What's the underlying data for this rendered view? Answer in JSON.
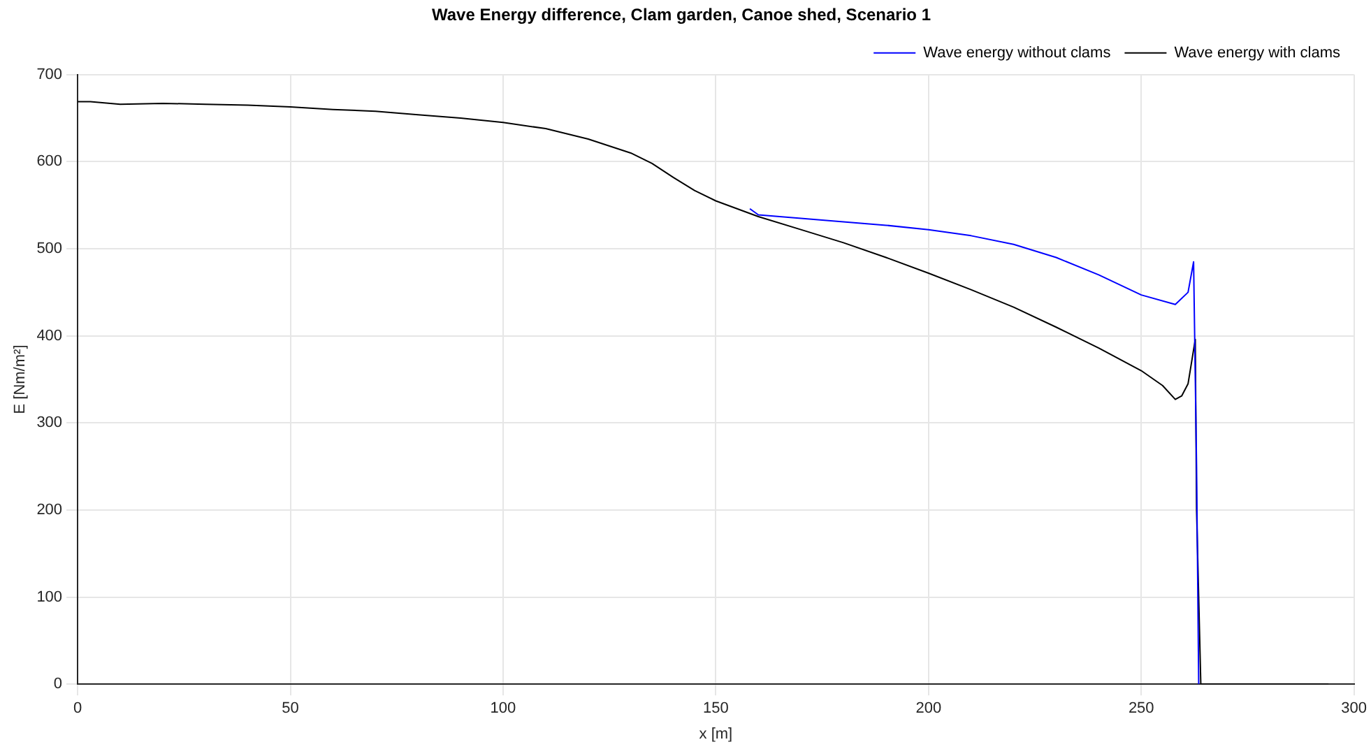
{
  "chart_data": {
    "type": "line",
    "title": "Wave Energy difference, Clam garden, Canoe shed, Scenario 1",
    "xlabel": "x [m]",
    "ylabel": "E [Nm/m²]",
    "xlim": [
      0,
      300
    ],
    "xticks": [
      0,
      50,
      100,
      150,
      200,
      250,
      300
    ],
    "ylim": [
      0,
      700
    ],
    "yticks": [
      0,
      100,
      200,
      300,
      400,
      500,
      600,
      700
    ],
    "grid": true,
    "legend": "top right",
    "marker": "none",
    "line_style": "solid",
    "series": [
      {
        "name": "Wave energy without clams",
        "color": "#0000ff",
        "x": [
          158,
          160,
          170,
          180,
          190,
          200,
          210,
          220,
          230,
          240,
          250,
          258,
          261,
          262.3,
          263,
          263.5
        ],
        "values": [
          546,
          539,
          535,
          531,
          527,
          522,
          515,
          505,
          490,
          470,
          447,
          436,
          450,
          485,
          250,
          0
        ]
      },
      {
        "name": "Wave energy with clams",
        "color": "#000000",
        "x": [
          0,
          3,
          10,
          20,
          30,
          40,
          50,
          60,
          70,
          80,
          90,
          100,
          110,
          120,
          130,
          135,
          140,
          145,
          150,
          155,
          160,
          170,
          180,
          190,
          200,
          210,
          220,
          230,
          240,
          250,
          255,
          258,
          259.5,
          261,
          262,
          262.7,
          263,
          264,
          294
        ],
        "values": [
          669,
          669,
          666,
          667,
          666,
          665,
          663,
          660,
          658,
          654,
          650,
          645,
          638,
          626,
          610,
          598,
          582,
          567,
          555,
          546,
          537,
          522,
          507,
          490,
          472,
          453,
          433,
          410,
          386,
          360,
          343,
          327,
          331,
          345,
          375,
          396,
          200,
          0,
          0
        ]
      }
    ]
  }
}
